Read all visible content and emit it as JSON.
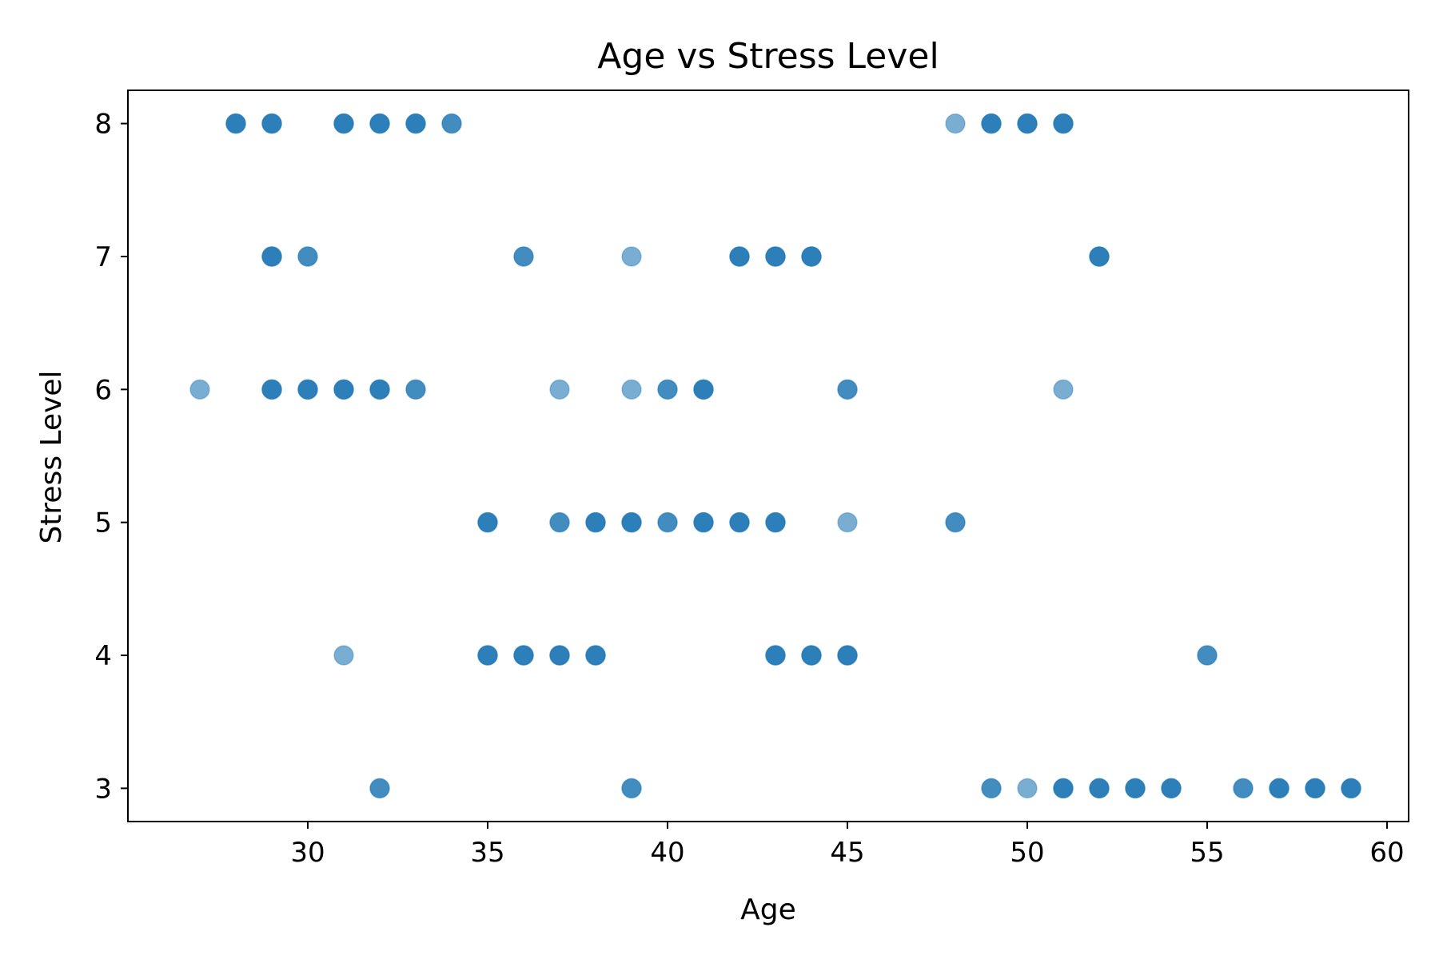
{
  "chart_data": {
    "type": "scatter",
    "title": "Age vs Stress Level",
    "xlabel": "Age",
    "ylabel": "Stress Level",
    "xlim": [
      25,
      60.6
    ],
    "ylim": [
      2.75,
      8.25
    ],
    "xticks": [
      30,
      35,
      40,
      45,
      50,
      55,
      60
    ],
    "yticks": [
      3,
      4,
      5,
      6,
      7,
      8
    ],
    "grid": false,
    "marker_color": "#1f77b4",
    "marker_alpha": 0.6,
    "points": [
      {
        "x": 28,
        "y": 8
      },
      {
        "x": 28,
        "y": 8
      },
      {
        "x": 28,
        "y": 8
      },
      {
        "x": 29,
        "y": 8
      },
      {
        "x": 29,
        "y": 8
      },
      {
        "x": 29,
        "y": 8
      },
      {
        "x": 31,
        "y": 8
      },
      {
        "x": 31,
        "y": 8
      },
      {
        "x": 31,
        "y": 8
      },
      {
        "x": 32,
        "y": 8
      },
      {
        "x": 32,
        "y": 8
      },
      {
        "x": 32,
        "y": 8
      },
      {
        "x": 33,
        "y": 8
      },
      {
        "x": 33,
        "y": 8
      },
      {
        "x": 33,
        "y": 8
      },
      {
        "x": 34,
        "y": 8
      },
      {
        "x": 34,
        "y": 8
      },
      {
        "x": 48,
        "y": 8
      },
      {
        "x": 49,
        "y": 8
      },
      {
        "x": 49,
        "y": 8
      },
      {
        "x": 49,
        "y": 8
      },
      {
        "x": 50,
        "y": 8
      },
      {
        "x": 50,
        "y": 8
      },
      {
        "x": 50,
        "y": 8
      },
      {
        "x": 51,
        "y": 8
      },
      {
        "x": 51,
        "y": 8
      },
      {
        "x": 51,
        "y": 8
      },
      {
        "x": 29,
        "y": 7
      },
      {
        "x": 29,
        "y": 7
      },
      {
        "x": 29,
        "y": 7
      },
      {
        "x": 30,
        "y": 7
      },
      {
        "x": 30,
        "y": 7
      },
      {
        "x": 36,
        "y": 7
      },
      {
        "x": 36,
        "y": 7
      },
      {
        "x": 39,
        "y": 7
      },
      {
        "x": 42,
        "y": 7
      },
      {
        "x": 42,
        "y": 7
      },
      {
        "x": 42,
        "y": 7
      },
      {
        "x": 43,
        "y": 7
      },
      {
        "x": 43,
        "y": 7
      },
      {
        "x": 43,
        "y": 7
      },
      {
        "x": 44,
        "y": 7
      },
      {
        "x": 44,
        "y": 7
      },
      {
        "x": 44,
        "y": 7
      },
      {
        "x": 52,
        "y": 7
      },
      {
        "x": 52,
        "y": 7
      },
      {
        "x": 52,
        "y": 7
      },
      {
        "x": 27,
        "y": 6
      },
      {
        "x": 29,
        "y": 6
      },
      {
        "x": 29,
        "y": 6
      },
      {
        "x": 29,
        "y": 6
      },
      {
        "x": 30,
        "y": 6
      },
      {
        "x": 30,
        "y": 6
      },
      {
        "x": 30,
        "y": 6
      },
      {
        "x": 31,
        "y": 6
      },
      {
        "x": 31,
        "y": 6
      },
      {
        "x": 31,
        "y": 6
      },
      {
        "x": 32,
        "y": 6
      },
      {
        "x": 32,
        "y": 6
      },
      {
        "x": 32,
        "y": 6
      },
      {
        "x": 33,
        "y": 6
      },
      {
        "x": 33,
        "y": 6
      },
      {
        "x": 37,
        "y": 6
      },
      {
        "x": 39,
        "y": 6
      },
      {
        "x": 40,
        "y": 6
      },
      {
        "x": 40,
        "y": 6
      },
      {
        "x": 41,
        "y": 6
      },
      {
        "x": 41,
        "y": 6
      },
      {
        "x": 41,
        "y": 6
      },
      {
        "x": 45,
        "y": 6
      },
      {
        "x": 45,
        "y": 6
      },
      {
        "x": 51,
        "y": 6
      },
      {
        "x": 35,
        "y": 5
      },
      {
        "x": 35,
        "y": 5
      },
      {
        "x": 35,
        "y": 5
      },
      {
        "x": 37,
        "y": 5
      },
      {
        "x": 37,
        "y": 5
      },
      {
        "x": 38,
        "y": 5
      },
      {
        "x": 38,
        "y": 5
      },
      {
        "x": 38,
        "y": 5
      },
      {
        "x": 39,
        "y": 5
      },
      {
        "x": 39,
        "y": 5
      },
      {
        "x": 39,
        "y": 5
      },
      {
        "x": 40,
        "y": 5
      },
      {
        "x": 40,
        "y": 5
      },
      {
        "x": 41,
        "y": 5
      },
      {
        "x": 41,
        "y": 5
      },
      {
        "x": 41,
        "y": 5
      },
      {
        "x": 42,
        "y": 5
      },
      {
        "x": 42,
        "y": 5
      },
      {
        "x": 42,
        "y": 5
      },
      {
        "x": 43,
        "y": 5
      },
      {
        "x": 43,
        "y": 5
      },
      {
        "x": 43,
        "y": 5
      },
      {
        "x": 45,
        "y": 5
      },
      {
        "x": 48,
        "y": 5
      },
      {
        "x": 48,
        "y": 5
      },
      {
        "x": 31,
        "y": 4
      },
      {
        "x": 35,
        "y": 4
      },
      {
        "x": 35,
        "y": 4
      },
      {
        "x": 35,
        "y": 4
      },
      {
        "x": 36,
        "y": 4
      },
      {
        "x": 36,
        "y": 4
      },
      {
        "x": 36,
        "y": 4
      },
      {
        "x": 37,
        "y": 4
      },
      {
        "x": 37,
        "y": 4
      },
      {
        "x": 37,
        "y": 4
      },
      {
        "x": 38,
        "y": 4
      },
      {
        "x": 38,
        "y": 4
      },
      {
        "x": 38,
        "y": 4
      },
      {
        "x": 43,
        "y": 4
      },
      {
        "x": 43,
        "y": 4
      },
      {
        "x": 43,
        "y": 4
      },
      {
        "x": 44,
        "y": 4
      },
      {
        "x": 44,
        "y": 4
      },
      {
        "x": 44,
        "y": 4
      },
      {
        "x": 45,
        "y": 4
      },
      {
        "x": 45,
        "y": 4
      },
      {
        "x": 45,
        "y": 4
      },
      {
        "x": 55,
        "y": 4
      },
      {
        "x": 55,
        "y": 4
      },
      {
        "x": 32,
        "y": 3
      },
      {
        "x": 32,
        "y": 3
      },
      {
        "x": 39,
        "y": 3
      },
      {
        "x": 39,
        "y": 3
      },
      {
        "x": 49,
        "y": 3
      },
      {
        "x": 49,
        "y": 3
      },
      {
        "x": 50,
        "y": 3
      },
      {
        "x": 51,
        "y": 3
      },
      {
        "x": 51,
        "y": 3
      },
      {
        "x": 51,
        "y": 3
      },
      {
        "x": 52,
        "y": 3
      },
      {
        "x": 52,
        "y": 3
      },
      {
        "x": 52,
        "y": 3
      },
      {
        "x": 53,
        "y": 3
      },
      {
        "x": 53,
        "y": 3
      },
      {
        "x": 53,
        "y": 3
      },
      {
        "x": 54,
        "y": 3
      },
      {
        "x": 54,
        "y": 3
      },
      {
        "x": 54,
        "y": 3
      },
      {
        "x": 56,
        "y": 3
      },
      {
        "x": 56,
        "y": 3
      },
      {
        "x": 57,
        "y": 3
      },
      {
        "x": 57,
        "y": 3
      },
      {
        "x": 57,
        "y": 3
      },
      {
        "x": 58,
        "y": 3
      },
      {
        "x": 58,
        "y": 3
      },
      {
        "x": 58,
        "y": 3
      },
      {
        "x": 59,
        "y": 3
      },
      {
        "x": 59,
        "y": 3
      },
      {
        "x": 59,
        "y": 3
      }
    ]
  }
}
